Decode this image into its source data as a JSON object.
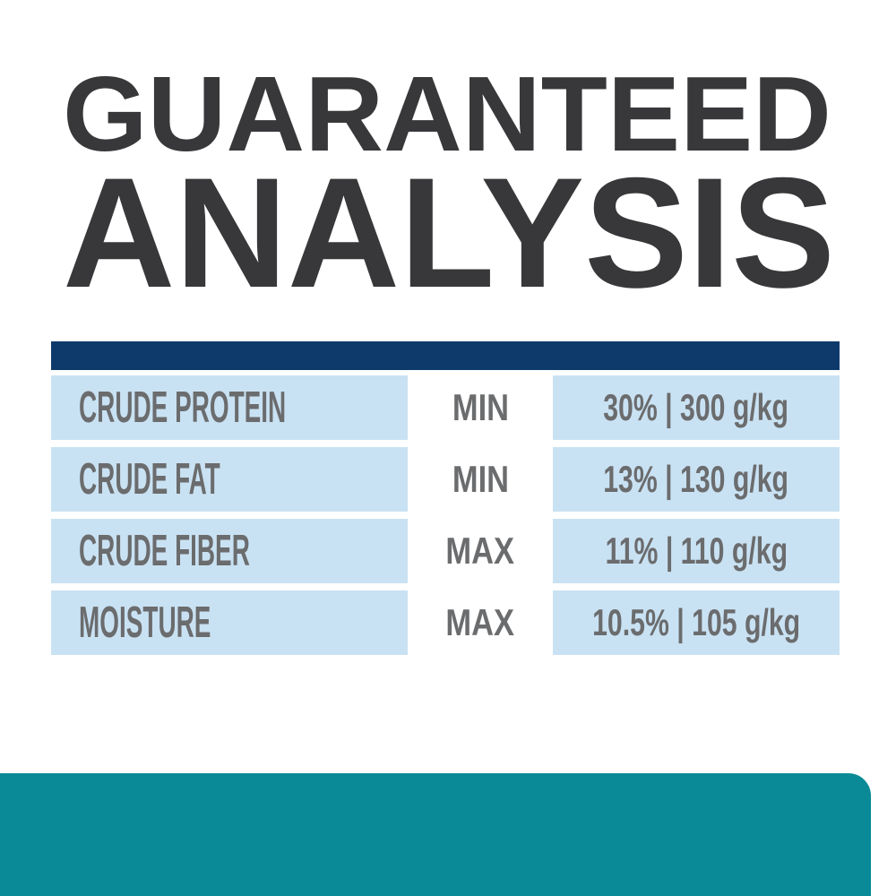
{
  "title": {
    "line1": "GUARANTEED",
    "line2": "ANALYSIS"
  },
  "table": {
    "rows": [
      {
        "label": "CRUDE PROTEIN",
        "qualifier": "MIN",
        "value": "30% | 300 g/kg"
      },
      {
        "label": "CRUDE FAT",
        "qualifier": "MIN",
        "value": "13% | 130 g/kg"
      },
      {
        "label": "CRUDE FIBER",
        "qualifier": "MAX",
        "value": "11% | 110 g/kg"
      },
      {
        "label": "MOISTURE",
        "qualifier": "MAX",
        "value": "10.5% | 105 g/kg"
      }
    ]
  },
  "colors": {
    "header_bar_navy": "#0e3a6b",
    "row_background_blue": "#c9e2f3",
    "bottom_bar_teal": "#098a96",
    "title_charcoal": "#38383a",
    "text_gray": "#6b6c6e"
  }
}
